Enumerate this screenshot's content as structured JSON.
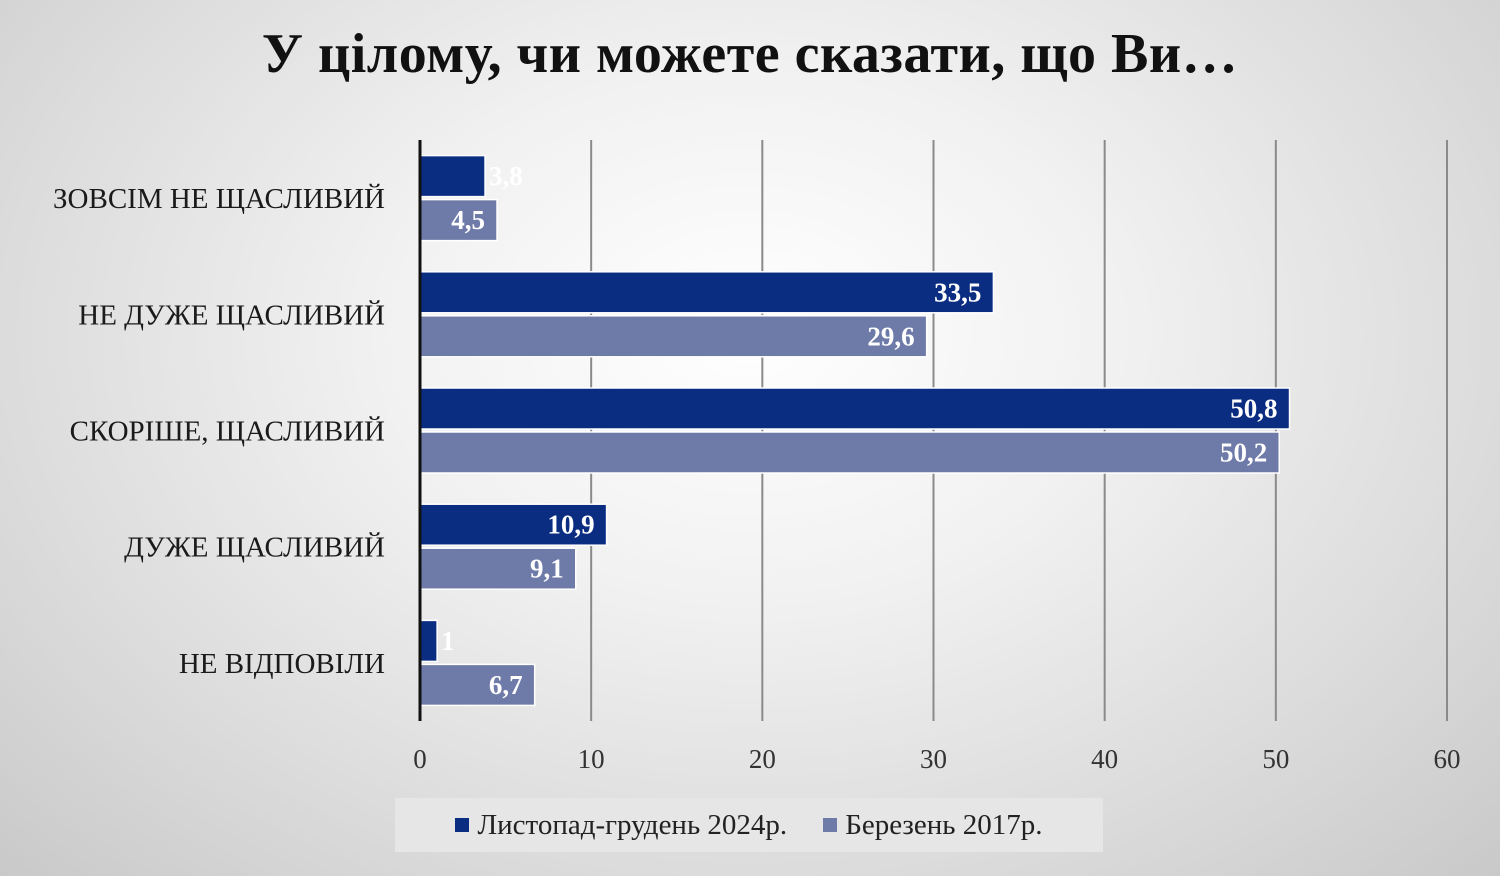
{
  "chart_data": {
    "type": "bar",
    "orientation": "horizontal",
    "title": "У цілому, чи можете сказати, що Ви…",
    "categories": [
      "ЗОВСІМ НЕ ЩАСЛИВИЙ",
      "НЕ ДУЖЕ ЩАСЛИВИЙ",
      "СКОРІШЕ, ЩАСЛИВИЙ",
      "ДУЖЕ ЩАСЛИВИЙ",
      "НЕ ВІДПОВІЛИ"
    ],
    "series": [
      {
        "name": "Листопад-грудень 2024р.",
        "color": "#0a2d82",
        "values": [
          3.8,
          33.5,
          50.8,
          10.9,
          1
        ],
        "labels": [
          "3,8",
          "33,5",
          "50,8",
          "10,9",
          "1"
        ]
      },
      {
        "name": "Березень 2017р.",
        "color": "#6e7aa8",
        "values": [
          4.5,
          29.6,
          50.2,
          9.1,
          6.7
        ],
        "labels": [
          "4,5",
          "29,6",
          "50,2",
          "9,1",
          "6,7"
        ]
      }
    ],
    "xlim": [
      0,
      60
    ],
    "xticks": [
      "0",
      "10",
      "20",
      "30",
      "40",
      "50",
      "60"
    ],
    "grid": true,
    "legend_position": "bottom"
  }
}
